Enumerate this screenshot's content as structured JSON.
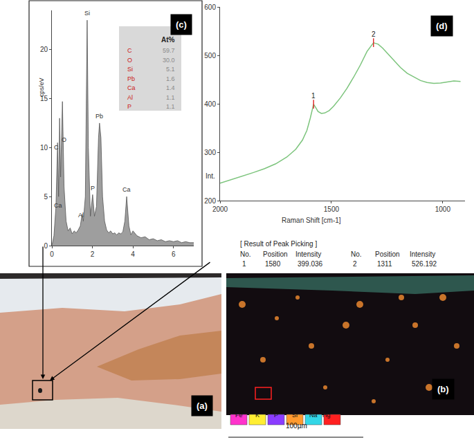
{
  "chart_data": [
    {
      "type": "area",
      "panel_label": "(c)",
      "y_label": "cps/eV",
      "color": "#9e9e9e",
      "grid": false,
      "x": [
        0,
        0.1,
        0.2,
        0.28,
        0.33,
        0.38,
        0.43,
        0.52,
        0.6,
        0.7,
        0.8,
        0.9,
        1.0,
        1.1,
        1.2,
        1.3,
        1.4,
        1.49,
        1.55,
        1.65,
        1.74,
        1.8,
        1.9,
        2.01,
        2.1,
        2.2,
        2.3,
        2.35,
        2.42,
        2.5,
        2.6,
        2.7,
        2.8,
        2.9,
        3.0,
        3.1,
        3.2,
        3.3,
        3.4,
        3.5,
        3.6,
        3.69,
        3.8,
        3.9,
        4.0,
        4.2,
        4.4,
        4.6,
        4.8,
        5.0,
        5.2,
        5.4,
        5.6,
        5.8,
        6.0,
        6.2,
        6.4,
        6.6,
        6.8,
        7.0
      ],
      "values": [
        0,
        1,
        4,
        10.5,
        5,
        13,
        7,
        14.7,
        6,
        2.5,
        1.5,
        1.8,
        1.2,
        1.5,
        1.3,
        1.6,
        2.0,
        3.2,
        2.5,
        5,
        23,
        10,
        3,
        5.2,
        3,
        4,
        11,
        12.5,
        11,
        5,
        2.5,
        1.6,
        1.3,
        1.5,
        1.2,
        1.3,
        1.1,
        1.3,
        1.2,
        1.4,
        2.5,
        5,
        2,
        1.1,
        1.5,
        1,
        0.8,
        0.9,
        0.6,
        0.7,
        0.5,
        0.6,
        0.4,
        0.5,
        0.4,
        0.5,
        0.3,
        0.4,
        0.3,
        0.3
      ],
      "xlim": [
        0,
        7
      ],
      "xticks": [
        0,
        2,
        4,
        6
      ],
      "ylim": [
        0,
        24
      ],
      "yticks": [
        0,
        5,
        10,
        15,
        20
      ],
      "annotations": [
        {
          "text": "C",
          "x": 0.22,
          "y": 9.5
        },
        {
          "text": "Ca",
          "x": 0.3,
          "y": 3.6
        },
        {
          "text": "O",
          "x": 0.6,
          "y": 10.3
        },
        {
          "text": "Si",
          "x": 1.74,
          "y": 23.2
        },
        {
          "text": "Al",
          "x": 1.45,
          "y": 2.6
        },
        {
          "text": "P",
          "x": 2.0,
          "y": 5.4
        },
        {
          "text": "Pb",
          "x": 2.35,
          "y": 12.7
        },
        {
          "text": "Ca",
          "x": 3.69,
          "y": 5.2
        }
      ],
      "inset_table": {
        "header": "At%",
        "rows": [
          [
            "C",
            "59.7"
          ],
          [
            "O",
            "30.0"
          ],
          [
            "Si",
            "5.1"
          ],
          [
            "Pb",
            "1.6"
          ],
          [
            "Ca",
            "1.4"
          ],
          [
            "Al",
            "1.1"
          ],
          [
            "P",
            "1.1"
          ]
        ]
      }
    },
    {
      "type": "line",
      "panel_label": "(d)",
      "x_label": "Raman Shift [cm-1]",
      "y_label": "Int.",
      "color": "#7cc47c",
      "grid": false,
      "x": [
        2000,
        1950,
        1900,
        1850,
        1800,
        1750,
        1700,
        1660,
        1630,
        1610,
        1595,
        1580,
        1570,
        1560,
        1545,
        1530,
        1510,
        1490,
        1460,
        1430,
        1400,
        1370,
        1340,
        1311,
        1290,
        1270,
        1250,
        1220,
        1190,
        1160,
        1130,
        1100,
        1070,
        1040,
        1010,
        980,
        950,
        920
      ],
      "values": [
        236,
        243,
        250,
        258,
        266,
        276,
        290,
        306,
        325,
        345,
        370,
        399,
        392,
        384,
        380,
        381,
        386,
        395,
        412,
        432,
        455,
        480,
        508,
        526,
        523,
        515,
        505,
        490,
        475,
        463,
        455,
        448,
        444,
        442,
        443,
        445,
        447,
        446
      ],
      "xlim": [
        2000,
        900
      ],
      "xticks": [
        2000,
        1500,
        1000
      ],
      "ylim": [
        200,
        600
      ],
      "yticks": [
        200,
        300,
        400,
        500,
        600
      ],
      "annotations": [
        {
          "text": "1",
          "x": 1580,
          "y": 399.036
        },
        {
          "text": "2",
          "x": 1311,
          "y": 526.192
        }
      ],
      "peak_table": {
        "title": "[ Result of Peak Picking ]",
        "columns": [
          "No.",
          "Position",
          "Intensity",
          "No.",
          "Position",
          "Intensity"
        ],
        "rows": [
          [
            "1",
            "1580",
            "399.036",
            "2",
            "1311",
            "526.192"
          ]
        ]
      }
    }
  ],
  "images": [
    {
      "panel_label": "(a)"
    },
    {
      "panel_label": "(b)",
      "legend": [
        {
          "name": "Fe",
          "color": "#ff33cc"
        },
        {
          "name": "K",
          "color": "#ffee33"
        },
        {
          "name": "P",
          "color": "#8a3cff"
        },
        {
          "name": "Si",
          "color": "#ff9a2e"
        },
        {
          "name": "Na",
          "color": "#33d6e6"
        },
        {
          "name": "Hg",
          "color": "#ff2020"
        }
      ],
      "scale_bar": "100µm"
    }
  ]
}
